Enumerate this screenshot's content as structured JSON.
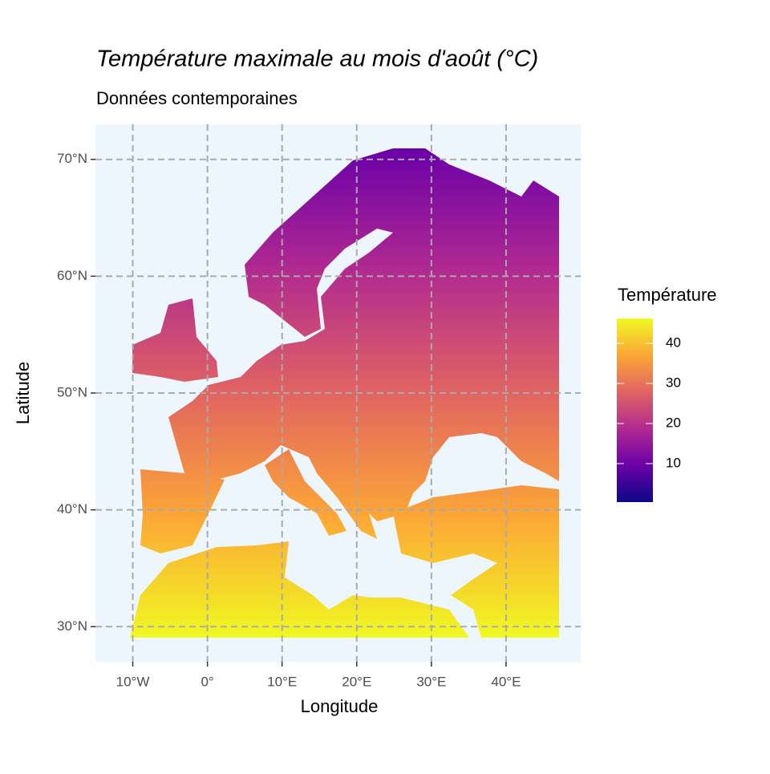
{
  "chart_data": {
    "type": "raster",
    "title": "Température maximale au mois d'août (°C)",
    "subtitle": "Données contemporaines",
    "x_label": "Longitude",
    "y_label": "Latitude",
    "xlim": [
      -15,
      50
    ],
    "ylim": [
      27,
      73
    ],
    "xticks": [
      {
        "value": -10,
        "label": "10°W"
      },
      {
        "value": 0,
        "label": "0°"
      },
      {
        "value": 10,
        "label": "10°E"
      },
      {
        "value": 20,
        "label": "20°E"
      },
      {
        "value": 30,
        "label": "30°E"
      },
      {
        "value": 40,
        "label": "40°E"
      }
    ],
    "yticks": [
      {
        "value": 30,
        "label": "30°N"
      },
      {
        "value": 40,
        "label": "40°N"
      },
      {
        "value": 50,
        "label": "50°N"
      },
      {
        "value": 60,
        "label": "60°N"
      },
      {
        "value": 70,
        "label": "70°N"
      }
    ],
    "grid": true,
    "legend": {
      "title": "Température",
      "lim": [
        0.4,
        46.2
      ],
      "ticks": [
        10,
        20,
        30,
        40
      ],
      "colormap": [
        "#0d0887",
        "#6a00a8",
        "#b12a90",
        "#e16462",
        "#fca636",
        "#f0f921"
      ]
    }
  }
}
